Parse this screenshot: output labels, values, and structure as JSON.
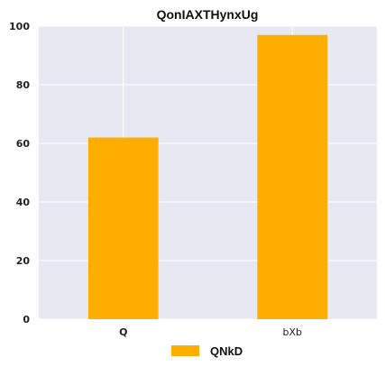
{
  "chart_data": {
    "type": "bar",
    "title": "QonIAXTHynxUg",
    "categories": [
      "Q",
      "bXb"
    ],
    "series": [
      {
        "name": "QNkD",
        "values": [
          62,
          97
        ]
      }
    ],
    "ylim": [
      0,
      100
    ],
    "yticks": [
      0,
      20,
      40,
      60,
      80,
      100
    ],
    "xlabel": "",
    "ylabel": "",
    "grid": true,
    "legend_position": "bottom-center",
    "colors": {
      "bar": "#FFAE00",
      "plot_background": "#E8E8F2",
      "grid": "#FFFFFF"
    }
  }
}
